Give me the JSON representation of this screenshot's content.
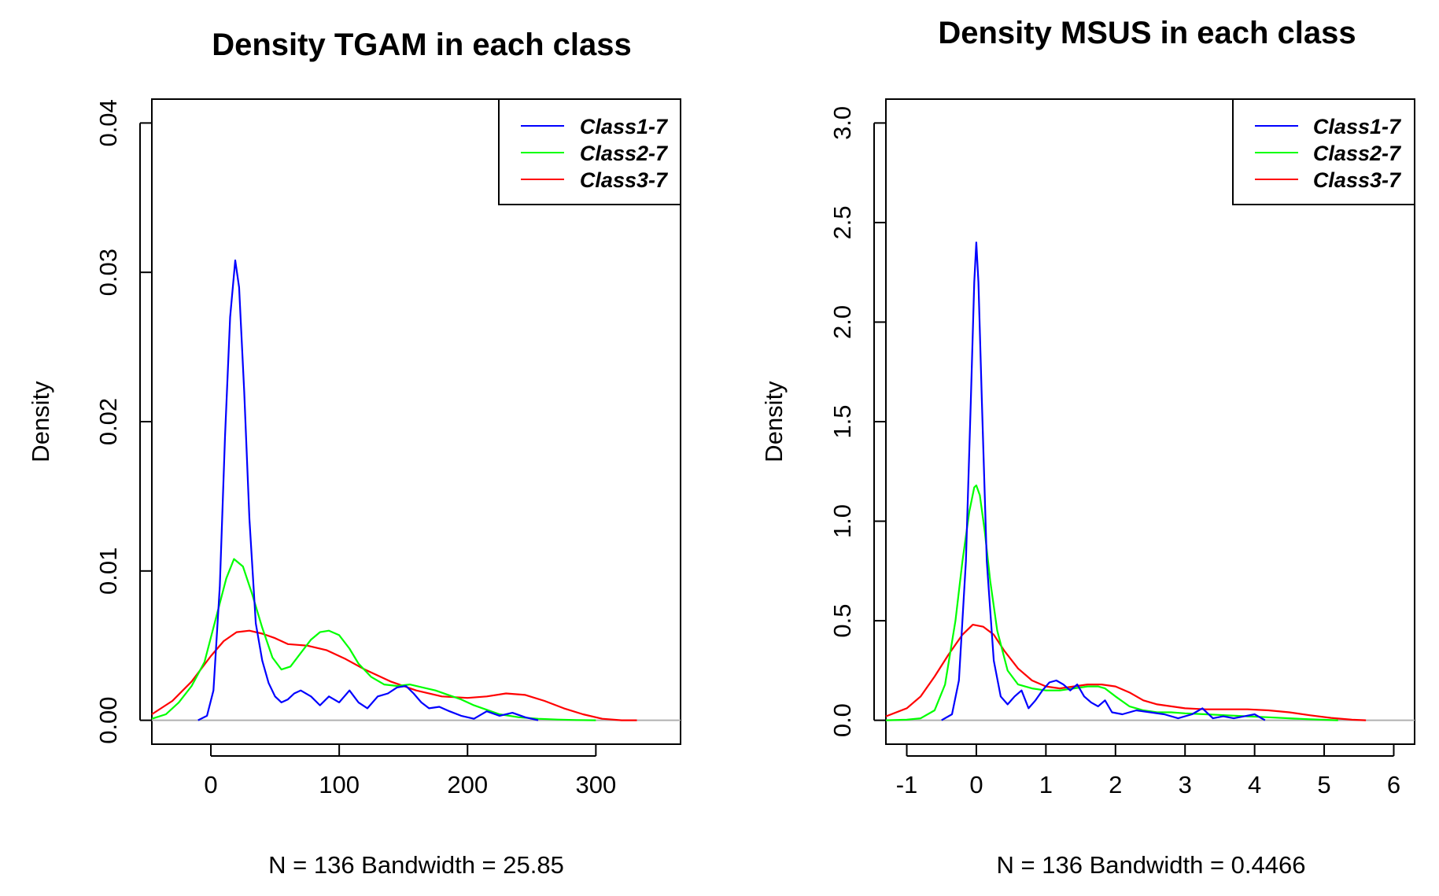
{
  "chart_data": [
    {
      "type": "line",
      "title": "Density TGAM in each class",
      "xlabel": "N = 136   Bandwidth = 25.85",
      "ylabel": "Density",
      "xlim": [
        -46,
        366
      ],
      "ylim": [
        -0.0016,
        0.0416
      ],
      "xticks": [
        0,
        100,
        200,
        300
      ],
      "xtick_labels": [
        "0",
        "100",
        "200",
        "300"
      ],
      "yticks": [
        0.0,
        0.01,
        0.02,
        0.03,
        0.04
      ],
      "ytick_labels": [
        "0.00",
        "0.01",
        "0.02",
        "0.03",
        "0.04"
      ],
      "baseline": {
        "y": 0,
        "x_range": [
          -46,
          366
        ],
        "color": "#b0b0b0"
      },
      "legend_position": "top-right",
      "legend": [
        "Class1-7",
        "Class2-7",
        "Class3-7"
      ],
      "series": [
        {
          "name": "Class1-7",
          "color": "#0000ff",
          "x": [
            -10,
            -3,
            2,
            7,
            11,
            15,
            19,
            22,
            26,
            30,
            35,
            40,
            45,
            50,
            55,
            60,
            65,
            70,
            78,
            85,
            92,
            100,
            108,
            115,
            122,
            130,
            138,
            145,
            152,
            158,
            164,
            170,
            178,
            186,
            195,
            205,
            215,
            225,
            235,
            245,
            255
          ],
          "y": [
            0.0,
            0.0003,
            0.002,
            0.009,
            0.019,
            0.027,
            0.0308,
            0.029,
            0.022,
            0.0135,
            0.0065,
            0.004,
            0.0025,
            0.0016,
            0.0012,
            0.0014,
            0.0018,
            0.002,
            0.0016,
            0.001,
            0.0016,
            0.0012,
            0.002,
            0.0012,
            0.0008,
            0.0016,
            0.0018,
            0.0022,
            0.0023,
            0.0018,
            0.0012,
            0.0008,
            0.0009,
            0.0006,
            0.0003,
            0.0001,
            0.0006,
            0.0003,
            0.0005,
            0.0002,
            0.0
          ]
        },
        {
          "name": "Class2-7",
          "color": "#00ff00",
          "x": [
            -46,
            -35,
            -25,
            -15,
            -5,
            5,
            12,
            18,
            25,
            32,
            40,
            48,
            55,
            62,
            70,
            78,
            85,
            92,
            100,
            108,
            115,
            125,
            135,
            145,
            155,
            165,
            175,
            185,
            195,
            205,
            215,
            225,
            240,
            255,
            270,
            285,
            300
          ],
          "y": [
            0.0001,
            0.0004,
            0.0012,
            0.0023,
            0.0039,
            0.0072,
            0.0095,
            0.0108,
            0.0103,
            0.0085,
            0.0062,
            0.0042,
            0.0034,
            0.0036,
            0.0045,
            0.0054,
            0.0059,
            0.006,
            0.0057,
            0.0048,
            0.0038,
            0.0029,
            0.0024,
            0.0023,
            0.0024,
            0.0022,
            0.002,
            0.0017,
            0.0014,
            0.001,
            0.0007,
            0.0004,
            0.0002,
            0.0001,
            5e-05,
            2e-05,
            0.0
          ]
        },
        {
          "name": "Class3-7",
          "color": "#ff0000",
          "x": [
            -46,
            -30,
            -15,
            0,
            10,
            20,
            30,
            40,
            50,
            60,
            75,
            90,
            105,
            120,
            140,
            160,
            180,
            200,
            215,
            230,
            245,
            260,
            275,
            290,
            305,
            320,
            332
          ],
          "y": [
            0.0004,
            0.0013,
            0.0026,
            0.0043,
            0.0053,
            0.0059,
            0.006,
            0.0058,
            0.0055,
            0.0051,
            0.005,
            0.0047,
            0.0041,
            0.0034,
            0.0026,
            0.002,
            0.0016,
            0.0015,
            0.0016,
            0.0018,
            0.0017,
            0.0013,
            0.0008,
            0.0004,
            0.0001,
            0.0,
            0.0
          ]
        }
      ]
    },
    {
      "type": "line",
      "title": "Density MSUS in each class",
      "xlabel": "N = 136   Bandwidth = 0.4466",
      "ylabel": "Density",
      "xlim": [
        -1.3,
        6.3
      ],
      "ylim": [
        -0.12,
        3.12
      ],
      "xticks": [
        -1,
        0,
        1,
        2,
        3,
        4,
        5,
        6
      ],
      "xtick_labels": [
        "-1",
        "0",
        "1",
        "2",
        "3",
        "4",
        "5",
        "6"
      ],
      "yticks": [
        0.0,
        0.5,
        1.0,
        1.5,
        2.0,
        2.5,
        3.0
      ],
      "ytick_labels": [
        "0.0",
        "0.5",
        "1.0",
        "1.5",
        "2.0",
        "2.5",
        "3.0"
      ],
      "baseline": {
        "y": 0,
        "x_range": [
          -1.3,
          6.3
        ],
        "color": "#b0b0b0"
      },
      "legend_position": "top-right",
      "legend": [
        "Class1-7",
        "Class2-7",
        "Class3-7"
      ],
      "series": [
        {
          "name": "Class1-7",
          "color": "#0000ff",
          "x": [
            -0.5,
            -0.35,
            -0.25,
            -0.15,
            -0.08,
            -0.03,
            0.0,
            0.03,
            0.08,
            0.15,
            0.25,
            0.35,
            0.45,
            0.55,
            0.65,
            0.75,
            0.85,
            0.95,
            1.05,
            1.15,
            1.25,
            1.35,
            1.45,
            1.55,
            1.65,
            1.75,
            1.85,
            1.95,
            2.1,
            2.3,
            2.5,
            2.7,
            2.9,
            3.1,
            3.25,
            3.4,
            3.55,
            3.7,
            3.85,
            4.0,
            4.15
          ],
          "y": [
            0.0,
            0.03,
            0.2,
            0.8,
            1.6,
            2.2,
            2.4,
            2.2,
            1.6,
            0.8,
            0.3,
            0.12,
            0.08,
            0.12,
            0.15,
            0.06,
            0.1,
            0.15,
            0.19,
            0.2,
            0.18,
            0.15,
            0.18,
            0.12,
            0.09,
            0.07,
            0.1,
            0.04,
            0.03,
            0.05,
            0.04,
            0.03,
            0.01,
            0.03,
            0.06,
            0.01,
            0.02,
            0.01,
            0.02,
            0.03,
            0.0
          ]
        },
        {
          "name": "Class2-7",
          "color": "#00ff00",
          "x": [
            -1.3,
            -1.0,
            -0.8,
            -0.6,
            -0.45,
            -0.3,
            -0.2,
            -0.1,
            -0.03,
            0.0,
            0.05,
            0.12,
            0.2,
            0.3,
            0.45,
            0.6,
            0.8,
            1.0,
            1.2,
            1.4,
            1.6,
            1.75,
            1.85,
            2.0,
            2.2,
            2.4,
            2.6,
            2.8,
            3.0,
            3.3,
            3.6,
            3.9,
            4.2,
            4.5,
            4.8,
            5.2
          ],
          "y": [
            0.0,
            0.003,
            0.01,
            0.05,
            0.18,
            0.5,
            0.8,
            1.05,
            1.17,
            1.18,
            1.13,
            0.95,
            0.7,
            0.45,
            0.25,
            0.18,
            0.16,
            0.15,
            0.15,
            0.16,
            0.17,
            0.17,
            0.16,
            0.12,
            0.07,
            0.05,
            0.04,
            0.04,
            0.035,
            0.03,
            0.025,
            0.02,
            0.015,
            0.01,
            0.005,
            0.0
          ]
        },
        {
          "name": "Class3-7",
          "color": "#ff0000",
          "x": [
            -1.3,
            -1.0,
            -0.8,
            -0.6,
            -0.4,
            -0.2,
            -0.05,
            0.1,
            0.25,
            0.4,
            0.6,
            0.8,
            1.0,
            1.2,
            1.4,
            1.6,
            1.8,
            2.0,
            2.2,
            2.4,
            2.6,
            2.8,
            3.0,
            3.3,
            3.6,
            3.9,
            4.2,
            4.5,
            4.8,
            5.1,
            5.4,
            5.6
          ],
          "y": [
            0.02,
            0.06,
            0.12,
            0.22,
            0.33,
            0.43,
            0.48,
            0.47,
            0.43,
            0.35,
            0.26,
            0.2,
            0.17,
            0.16,
            0.17,
            0.18,
            0.18,
            0.17,
            0.14,
            0.1,
            0.08,
            0.07,
            0.06,
            0.055,
            0.055,
            0.055,
            0.05,
            0.04,
            0.025,
            0.012,
            0.003,
            0.0
          ]
        }
      ]
    }
  ]
}
